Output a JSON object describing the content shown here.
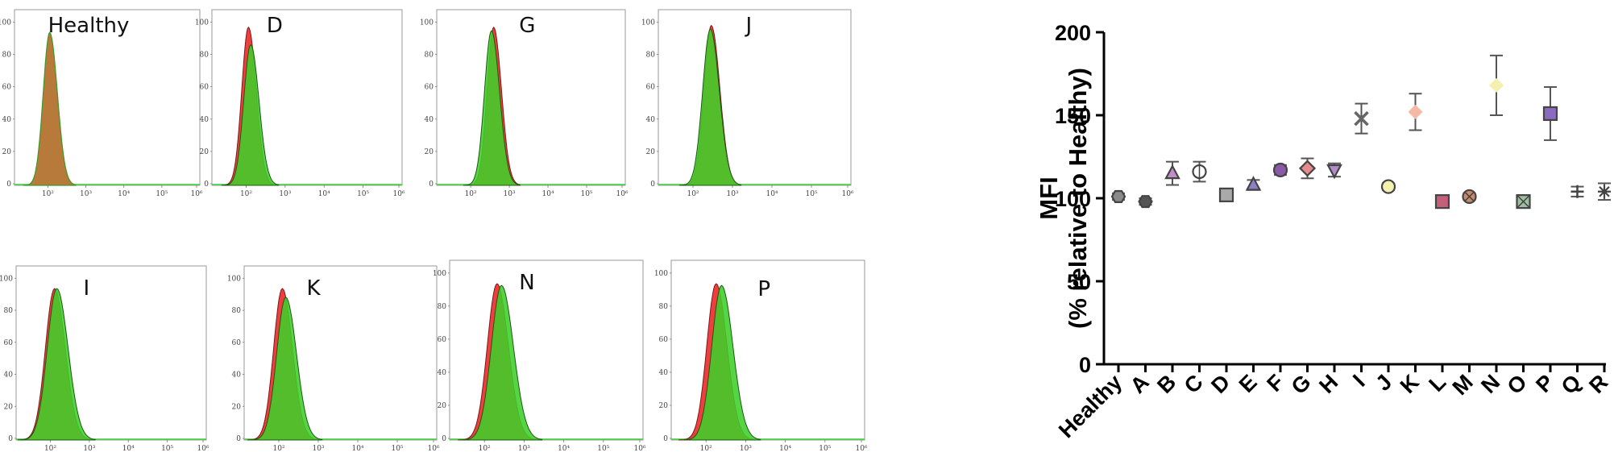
{
  "histograms": {
    "type": "histogram",
    "panels": [
      {
        "title": "Healthy",
        "y_ticks": [
          "0",
          "20",
          "40",
          "60",
          "80",
          "100"
        ],
        "x_ticks": [
          "10²",
          "10³",
          "10⁴",
          "10⁵",
          "10⁶"
        ]
      },
      {
        "title": "D",
        "y_ticks": [
          "0",
          "20",
          "40",
          "60",
          "80",
          "100"
        ],
        "x_ticks": [
          "10²",
          "10³",
          "10⁴",
          "10⁵",
          "10⁶"
        ]
      },
      {
        "title": "G",
        "y_ticks": [
          "0",
          "20",
          "40",
          "60",
          "80",
          "100"
        ],
        "x_ticks": [
          "10²",
          "10³",
          "10⁴",
          "10⁵",
          "10⁶"
        ]
      },
      {
        "title": "J",
        "y_ticks": [
          "0",
          "20",
          "40",
          "60",
          "80",
          "100"
        ],
        "x_ticks": [
          "10²",
          "10³",
          "10⁴",
          "10⁵",
          "10⁶"
        ]
      },
      {
        "title": "I",
        "y_ticks": [
          "0",
          "20",
          "40",
          "60",
          "80",
          "100"
        ],
        "x_ticks": [
          "10²",
          "10³",
          "10⁴",
          "10⁵",
          "10⁶"
        ]
      },
      {
        "title": "K",
        "y_ticks": [
          "0",
          "20",
          "40",
          "60",
          "80",
          "100"
        ],
        "x_ticks": [
          "10²",
          "10³",
          "10⁴",
          "10⁵",
          "10⁶"
        ]
      },
      {
        "title": "N",
        "y_ticks": [
          "0",
          "20",
          "40",
          "60",
          "80",
          "100"
        ],
        "x_ticks": [
          "10²",
          "10³",
          "10⁴",
          "10⁵",
          "10⁶"
        ]
      },
      {
        "title": "P",
        "y_ticks": [
          "0",
          "20",
          "40",
          "60",
          "80",
          "100"
        ],
        "x_ticks": [
          "10²",
          "10³",
          "10⁴",
          "10⁵",
          "10⁶"
        ]
      }
    ]
  },
  "chart_data": {
    "type": "scatter",
    "ylabel_line1": "MFI",
    "ylabel_line2": "(% relative to Healthy)",
    "xlabel": "",
    "ylim": [
      0,
      200
    ],
    "yticks": [
      "0",
      "50",
      "100",
      "150",
      "200"
    ],
    "categories": [
      "Healthy",
      "A",
      "B",
      "C",
      "D",
      "E",
      "F",
      "G",
      "H",
      "I",
      "J",
      "K",
      "L",
      "M",
      "N",
      "O",
      "P",
      "Q",
      "R"
    ],
    "points": [
      {
        "label": "Healthy",
        "value": 101,
        "err": 2,
        "marker": "hexagon",
        "color": "#8a8a8a"
      },
      {
        "label": "A",
        "value": 98,
        "err": 2,
        "marker": "hexagon",
        "color": "#555555"
      },
      {
        "label": "B",
        "value": 115,
        "err": 7,
        "marker": "triangle",
        "color": "#c38ec8"
      },
      {
        "label": "C",
        "value": 116,
        "err": 6,
        "marker": "circle-plus",
        "color": "#ffffff"
      },
      {
        "label": "D",
        "value": 102,
        "err": 3,
        "marker": "square",
        "color": "#a9a9a9"
      },
      {
        "label": "E",
        "value": 108,
        "err": 3,
        "marker": "triangle",
        "color": "#8f7fc6"
      },
      {
        "label": "F",
        "value": 117,
        "err": 3,
        "marker": "circle",
        "color": "#8a5aa8"
      },
      {
        "label": "G",
        "value": 118,
        "err": 6,
        "marker": "diamond",
        "color": "#e58b8b"
      },
      {
        "label": "H",
        "value": 117,
        "err": 4,
        "marker": "triangle-down",
        "color": "#b48cc8"
      },
      {
        "label": "I",
        "value": 148,
        "err": 9,
        "marker": "x",
        "color": "#666666"
      },
      {
        "label": "J",
        "value": 107,
        "err": 2,
        "marker": "circle",
        "color": "#f3f0b0"
      },
      {
        "label": "K",
        "value": 152,
        "err": 11,
        "marker": "diamond",
        "color": "#f6b9a6"
      },
      {
        "label": "L",
        "value": 98,
        "err": 2,
        "marker": "square",
        "color": "#c4607a"
      },
      {
        "label": "M",
        "value": 101,
        "err": 2,
        "marker": "circle-x",
        "color": "#c98a6a"
      },
      {
        "label": "N",
        "value": 168,
        "err": 18,
        "marker": "diamond",
        "color": "#f3f0b0"
      },
      {
        "label": "O",
        "value": 98,
        "err": 2,
        "marker": "square-x",
        "color": "#9ec0a0"
      },
      {
        "label": "P",
        "value": 151,
        "err": 16,
        "marker": "square",
        "color": "#8b6bbf"
      },
      {
        "label": "Q",
        "value": 104,
        "err": 3,
        "marker": "plus",
        "color": "#444444"
      },
      {
        "label": "R",
        "value": 104,
        "err": 5,
        "marker": "star",
        "color": "#444444"
      }
    ]
  }
}
